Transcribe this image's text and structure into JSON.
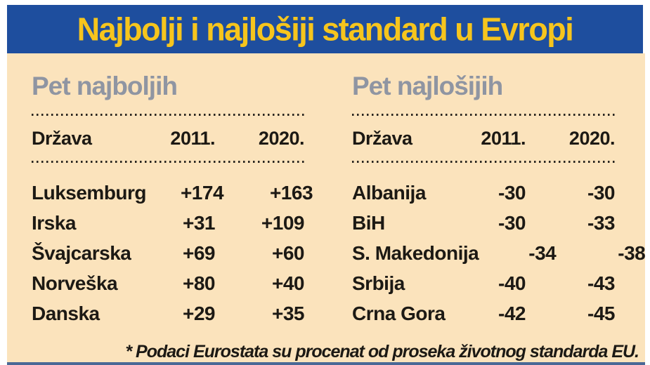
{
  "header": {
    "title": "Najbolji i najlošiji standard u Evropi"
  },
  "footnote": "* Podaci Eurostata su procenat od proseka životnog standarda EU.",
  "colors": {
    "header_blue": "#1e4e9e",
    "title_yellow": "#f6c51d",
    "panel_tan": "#fbe3bc",
    "heading_gray": "#8f95a2",
    "text_black": "#1c1914"
  },
  "chart_data": {
    "type": "table",
    "title": "Najbolji i najlošiji standard u Evropi",
    "note": "* Podaci Eurostata su procenat od proseka životnog standarda EU.",
    "tables": [
      {
        "heading": "Pet najboljih",
        "columns": [
          "Država",
          "2011.",
          "2020."
        ],
        "rows": [
          [
            "Luksemburg",
            "+174",
            "+163"
          ],
          [
            "Irska",
            "+31",
            "+109"
          ],
          [
            "Švajcarska",
            "+69",
            "+60"
          ],
          [
            "Norveška",
            "+80",
            "+40"
          ],
          [
            "Danska",
            "+29",
            "+35"
          ]
        ]
      },
      {
        "heading": "Pet najlošijih",
        "columns": [
          "Država",
          "2011.",
          "2020."
        ],
        "rows": [
          [
            "Albanija",
            "-30",
            "-30"
          ],
          [
            "BiH",
            "-30",
            "-33"
          ],
          [
            "S. Makedonija",
            "-34",
            "-38"
          ],
          [
            "Srbija",
            "-40",
            "-43"
          ],
          [
            "Crna Gora",
            "-42",
            "-45"
          ]
        ]
      }
    ]
  }
}
